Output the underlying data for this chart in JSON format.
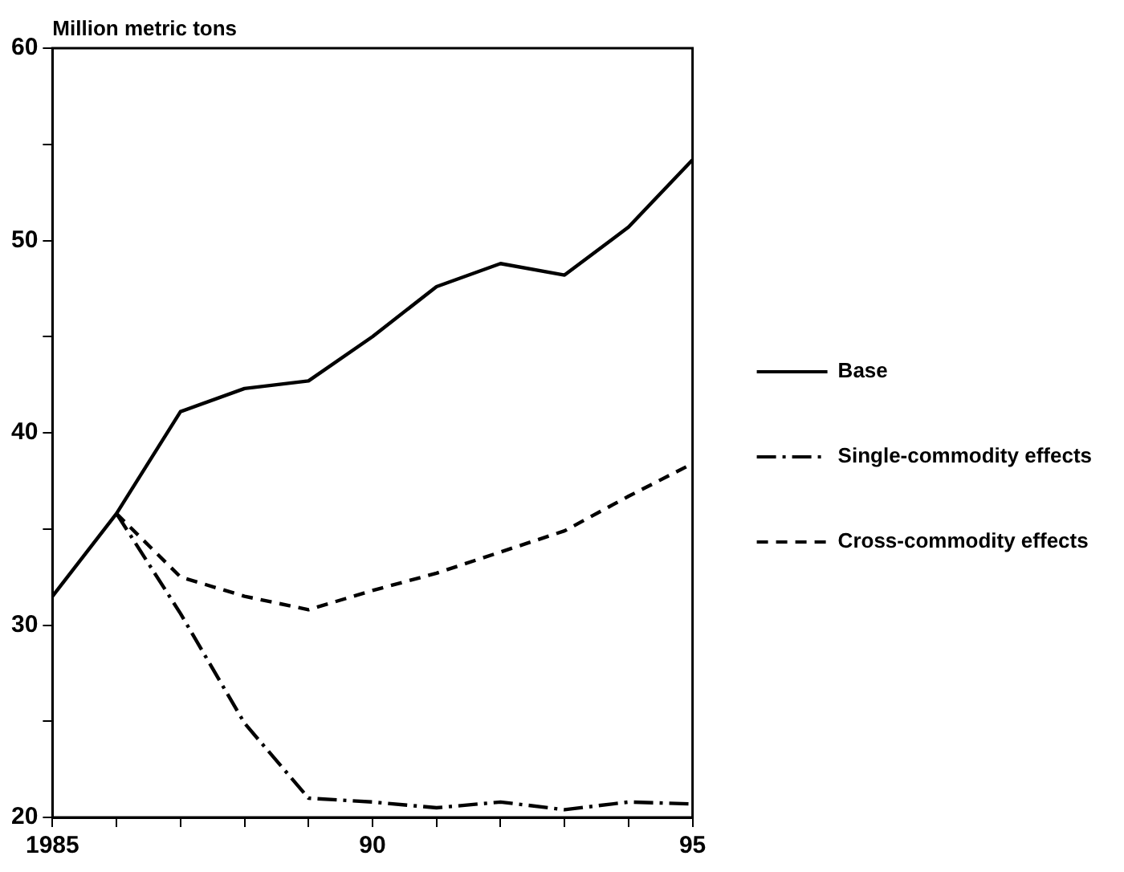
{
  "chart_data": {
    "type": "line",
    "ylabel": "Million metric tons",
    "x": [
      1985,
      1986,
      1987,
      1988,
      1989,
      1990,
      1991,
      1992,
      1993,
      1994,
      1995
    ],
    "series": [
      {
        "name": "Base",
        "color": "#000000",
        "line_style": "solid",
        "values": [
          31.5,
          35.8,
          41.1,
          42.3,
          42.7,
          45.0,
          47.6,
          48.8,
          48.2,
          50.7,
          54.2
        ]
      },
      {
        "name": "Single-commodity effects",
        "color": "#000000",
        "line_style": "dashdot",
        "values": [
          null,
          35.8,
          30.6,
          24.9,
          21.0,
          20.8,
          20.5,
          20.8,
          20.4,
          20.8,
          20.7
        ]
      },
      {
        "name": "Cross-commodity effects",
        "color": "#000000",
        "line_style": "dashed",
        "values": [
          null,
          35.8,
          32.5,
          31.5,
          30.8,
          31.8,
          32.7,
          33.8,
          34.9,
          36.7,
          38.4
        ]
      }
    ],
    "xlim": [
      1985,
      1995
    ],
    "xticks": [
      {
        "value": 1985,
        "label": "1985"
      },
      {
        "value": 1986,
        "label": null
      },
      {
        "value": 1987,
        "label": null
      },
      {
        "value": 1988,
        "label": null
      },
      {
        "value": 1989,
        "label": null
      },
      {
        "value": 1990,
        "label": "90"
      },
      {
        "value": 1991,
        "label": null
      },
      {
        "value": 1992,
        "label": null
      },
      {
        "value": 1993,
        "label": null
      },
      {
        "value": 1994,
        "label": null
      },
      {
        "value": 1995,
        "label": "95"
      }
    ],
    "ylim": [
      20,
      60
    ],
    "yticks": [
      20,
      {
        "value": 25,
        "label": null
      },
      30,
      {
        "value": 35,
        "label": null
      },
      40,
      {
        "value": 45,
        "label": null
      },
      50,
      {
        "value": 55,
        "label": null
      },
      60
    ],
    "grid": false,
    "legend": "right",
    "marker": "none"
  }
}
